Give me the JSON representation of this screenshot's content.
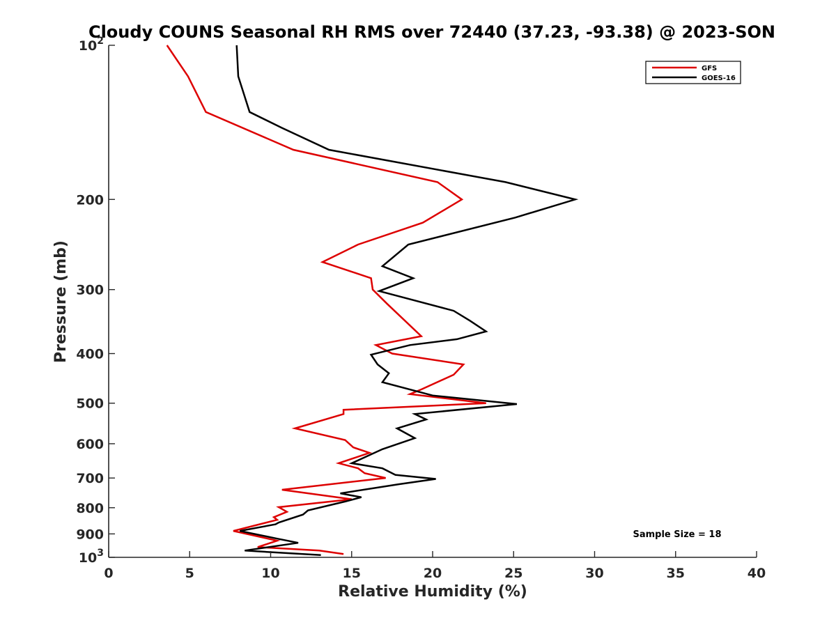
{
  "chart_data": {
    "type": "line",
    "title": "Cloudy COUNS Seasonal RH RMS over 72440 (37.23, -93.38) @ 2023-SON",
    "xlabel": "Relative Humidity (%)",
    "ylabel": "Pressure (mb)",
    "xlim": [
      0,
      40
    ],
    "ylim": [
      100,
      1000
    ],
    "yscale": "log",
    "yreversed": true,
    "x_ticks": [
      0,
      5,
      10,
      15,
      20,
      25,
      30,
      35,
      40
    ],
    "x_tick_labels": [
      "0",
      "5",
      "10",
      "15",
      "20",
      "25",
      "30",
      "35",
      "40"
    ],
    "y_ticks": [
      100,
      200,
      300,
      400,
      500,
      600,
      700,
      800,
      900,
      1000
    ],
    "y_tick_labels": [
      "",
      "200",
      "300",
      "400",
      "500",
      "600",
      "700",
      "800",
      "900",
      ""
    ],
    "y_tick_base": "10",
    "y_tick_top_exp": "2",
    "y_tick_bottom_exp": "3",
    "legend": {
      "location": "top-right",
      "entries": [
        "GFS",
        "GOES-16"
      ]
    },
    "annotation": "Sample Size = 18",
    "series": [
      {
        "name": "GFS",
        "color": "#dd0000",
        "points": [
          [
            3.6,
            100
          ],
          [
            4.9,
            115
          ],
          [
            6.0,
            135
          ],
          [
            11.4,
            160
          ],
          [
            20.3,
            185
          ],
          [
            21.8,
            200
          ],
          [
            19.4,
            222
          ],
          [
            15.4,
            245
          ],
          [
            13.2,
            265
          ],
          [
            16.2,
            285
          ],
          [
            16.3,
            300
          ],
          [
            17.2,
            320
          ],
          [
            19.3,
            370
          ],
          [
            16.5,
            385
          ],
          [
            17.5,
            400
          ],
          [
            21.9,
            420
          ],
          [
            21.3,
            440
          ],
          [
            19.3,
            470
          ],
          [
            18.6,
            480
          ],
          [
            23.3,
            500
          ],
          [
            14.5,
            515
          ],
          [
            14.5,
            525
          ],
          [
            11.5,
            560
          ],
          [
            14.6,
            590
          ],
          [
            15.1,
            610
          ],
          [
            16.1,
            625
          ],
          [
            14.2,
            655
          ],
          [
            15.4,
            670
          ],
          [
            15.8,
            685
          ],
          [
            17.1,
            700
          ],
          [
            10.7,
            738
          ],
          [
            15.0,
            770
          ],
          [
            10.5,
            798
          ],
          [
            11.0,
            815
          ],
          [
            10.2,
            835
          ],
          [
            10.4,
            845
          ],
          [
            7.7,
            888
          ],
          [
            10.4,
            928
          ],
          [
            9.2,
            955
          ],
          [
            13.0,
            970
          ],
          [
            14.5,
            985
          ]
        ]
      },
      {
        "name": "GOES-16",
        "color": "#000000",
        "points": [
          [
            7.9,
            100
          ],
          [
            8.0,
            115
          ],
          [
            8.7,
            135
          ],
          [
            10.7,
            145
          ],
          [
            13.6,
            160
          ],
          [
            24.5,
            185
          ],
          [
            28.8,
            200
          ],
          [
            25.1,
            217
          ],
          [
            18.5,
            245
          ],
          [
            16.9,
            270
          ],
          [
            18.8,
            285
          ],
          [
            16.7,
            302
          ],
          [
            21.3,
            330
          ],
          [
            22.3,
            345
          ],
          [
            23.3,
            362
          ],
          [
            21.5,
            375
          ],
          [
            18.6,
            385
          ],
          [
            16.2,
            402
          ],
          [
            16.6,
            420
          ],
          [
            17.3,
            437
          ],
          [
            16.9,
            455
          ],
          [
            20.0,
            483
          ],
          [
            25.2,
            502
          ],
          [
            18.9,
            525
          ],
          [
            19.6,
            538
          ],
          [
            17.8,
            560
          ],
          [
            18.9,
            585
          ],
          [
            16.9,
            615
          ],
          [
            15.0,
            655
          ],
          [
            16.9,
            670
          ],
          [
            17.7,
            690
          ],
          [
            20.2,
            703
          ],
          [
            17.9,
            720
          ],
          [
            14.3,
            750
          ],
          [
            15.6,
            763
          ],
          [
            14.6,
            778
          ],
          [
            12.3,
            810
          ],
          [
            12.0,
            825
          ],
          [
            10.5,
            855
          ],
          [
            10.3,
            862
          ],
          [
            8.1,
            888
          ],
          [
            10.3,
            918
          ],
          [
            11.7,
            937
          ],
          [
            8.4,
            970
          ],
          [
            13.1,
            990
          ]
        ]
      }
    ]
  }
}
